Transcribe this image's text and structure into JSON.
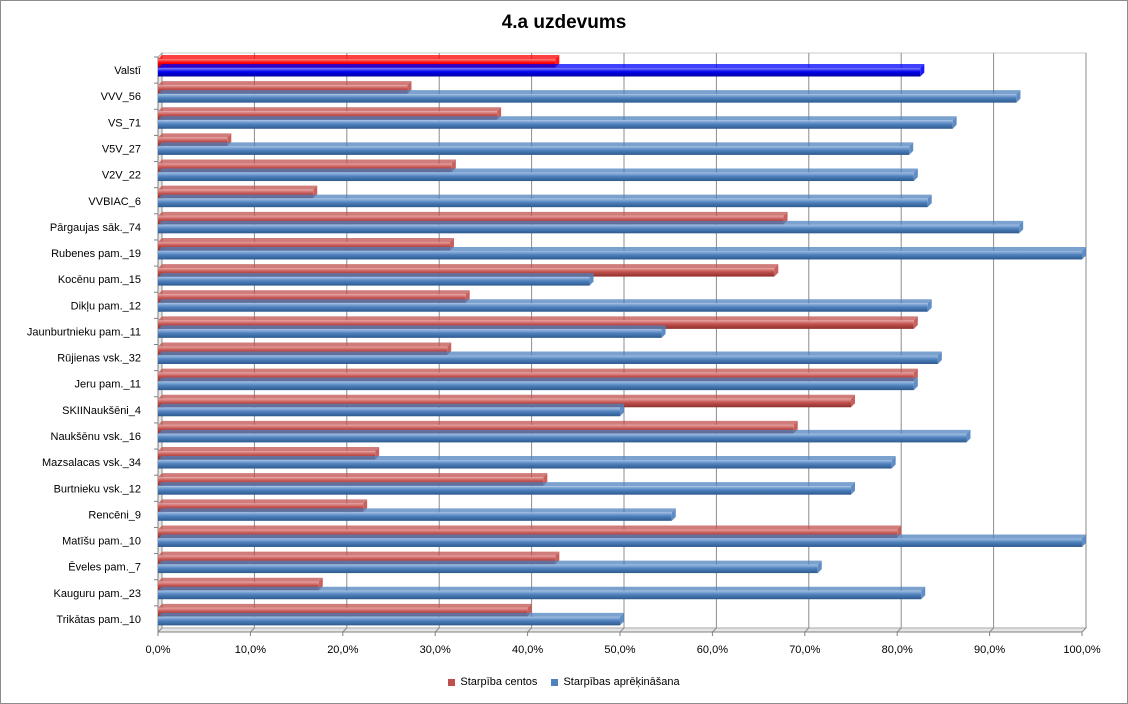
{
  "chart_data": {
    "type": "bar",
    "orientation": "horizontal",
    "title": "4.a uzdevums",
    "xlabel": "",
    "ylabel": "",
    "xlim": [
      0,
      1
    ],
    "grid": true,
    "legend_position": "bottom",
    "x_ticks": [
      "0,0%",
      "10,0%",
      "20,0%",
      "30,0%",
      "40,0%",
      "50,0%",
      "60,0%",
      "70,0%",
      "80,0%",
      "90,0%",
      "100,0%"
    ],
    "categories": [
      "Valstī",
      "VVV_56",
      "VS_71",
      "V5V_27",
      "V2V_22",
      "VVBIAC_6",
      "Pārgaujas sāk._74",
      "Rubenes pam._19",
      "Kocēnu pam._15",
      "Dikļu pam._12",
      "Jaunburtnieku pam._11",
      "Rūjienas vsk._32",
      "Jeru pam._11",
      "SKIINaukšēni_4",
      "Naukšēnu vsk._16",
      "Mazsalacas vsk._34",
      "Burtnieku vsk._12",
      "Rencēni_9",
      "Matīšu pam._10",
      "Ēveles pam._7",
      "Kauguru pam._23",
      "Trikātas pam._10"
    ],
    "highlight_category": "Valstī",
    "series": [
      {
        "name": "Starpība centos",
        "color": "#C0504D",
        "highlight_color": "#FF0000",
        "values": [
          0.43,
          0.27,
          0.367,
          0.075,
          0.318,
          0.168,
          0.677,
          0.316,
          0.667,
          0.333,
          0.818,
          0.313,
          0.818,
          0.75,
          0.688,
          0.235,
          0.417,
          0.222,
          0.8,
          0.43,
          0.174,
          0.4
        ]
      },
      {
        "name": "Starpības aprēķināšana",
        "color": "#4F81BD",
        "highlight_color": "#0000FF",
        "values": [
          0.825,
          0.929,
          0.86,
          0.813,
          0.818,
          0.833,
          0.932,
          1.0,
          0.467,
          0.833,
          0.545,
          0.844,
          0.818,
          0.5,
          0.875,
          0.794,
          0.75,
          0.556,
          1.0,
          0.714,
          0.826,
          0.5
        ]
      }
    ]
  }
}
